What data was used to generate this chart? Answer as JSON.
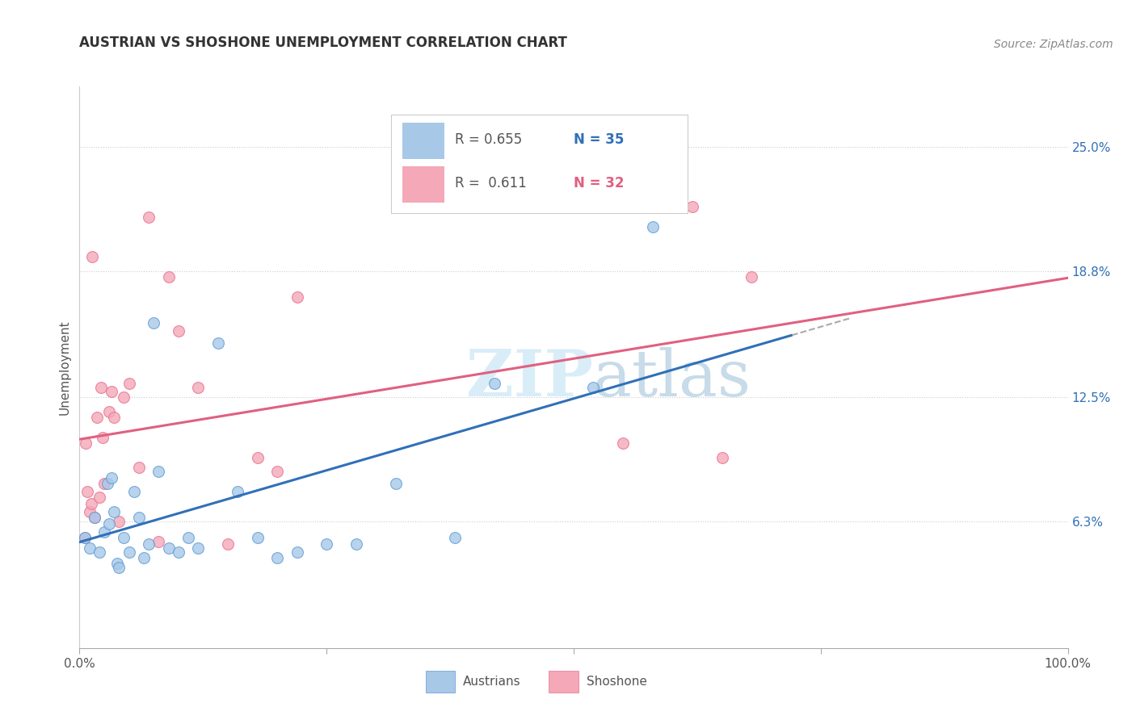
{
  "title": "AUSTRIAN VS SHOSHONE UNEMPLOYMENT CORRELATION CHART",
  "source": "Source: ZipAtlas.com",
  "ylabel": "Unemployment",
  "y_ticks": [
    6.3,
    12.5,
    18.8,
    25.0
  ],
  "y_tick_labels": [
    "6.3%",
    "12.5%",
    "18.8%",
    "25.0%"
  ],
  "legend_blue_r": "0.655",
  "legend_blue_n": "35",
  "legend_pink_r": "0.611",
  "legend_pink_n": "32",
  "blue_color": "#a8c8e8",
  "pink_color": "#f4a8b8",
  "blue_edge_color": "#5b9bd5",
  "pink_edge_color": "#e87090",
  "blue_line_color": "#3070b8",
  "pink_line_color": "#e06080",
  "blue_label_color": "#3070b8",
  "pink_label_color": "#e06080",
  "watermark_color": "#d8edf8",
  "grid_color": "#cccccc",
  "xlim": [
    0,
    100
  ],
  "ylim": [
    0,
    28
  ],
  "blue_scatter_x": [
    0.5,
    1.0,
    1.5,
    2.0,
    2.5,
    2.8,
    3.0,
    3.2,
    3.5,
    3.8,
    4.0,
    4.5,
    5.0,
    5.5,
    6.0,
    6.5,
    7.0,
    7.5,
    8.0,
    9.0,
    10.0,
    11.0,
    12.0,
    14.0,
    16.0,
    18.0,
    20.0,
    22.0,
    25.0,
    28.0,
    32.0,
    38.0,
    42.0,
    52.0,
    58.0
  ],
  "blue_scatter_y": [
    5.5,
    5.0,
    6.5,
    4.8,
    5.8,
    8.2,
    6.2,
    8.5,
    6.8,
    4.2,
    4.0,
    5.5,
    4.8,
    7.8,
    6.5,
    4.5,
    5.2,
    16.2,
    8.8,
    5.0,
    4.8,
    5.5,
    5.0,
    15.2,
    7.8,
    5.5,
    4.5,
    4.8,
    5.2,
    5.2,
    8.2,
    5.5,
    13.2,
    13.0,
    21.0
  ],
  "pink_scatter_x": [
    0.5,
    0.8,
    1.0,
    1.2,
    1.5,
    1.8,
    2.0,
    2.3,
    2.5,
    3.0,
    3.5,
    4.0,
    4.5,
    5.0,
    6.0,
    7.0,
    8.0,
    9.0,
    10.0,
    12.0,
    15.0,
    18.0,
    20.0,
    22.0,
    55.0,
    62.0,
    65.0,
    68.0,
    2.2,
    3.2,
    1.3,
    0.6
  ],
  "pink_scatter_y": [
    5.5,
    7.8,
    6.8,
    7.2,
    6.5,
    11.5,
    7.5,
    10.5,
    8.2,
    11.8,
    11.5,
    6.3,
    12.5,
    13.2,
    9.0,
    21.5,
    5.3,
    18.5,
    15.8,
    13.0,
    5.2,
    9.5,
    8.8,
    17.5,
    10.2,
    22.0,
    9.5,
    18.5,
    13.0,
    12.8,
    19.5,
    10.2
  ]
}
